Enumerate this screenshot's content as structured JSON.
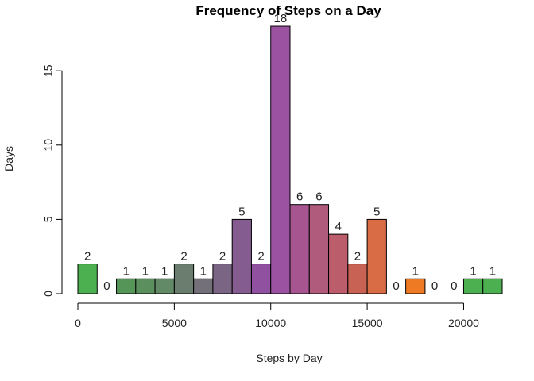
{
  "chart_data": {
    "type": "bar",
    "title": "Frequency of Steps on a Day",
    "xlabel": "Steps by Day",
    "ylabel": "Days",
    "bin_width": 1000,
    "x_range": [
      0,
      22000
    ],
    "ylim": [
      0,
      18
    ],
    "x_ticks": [
      0,
      5000,
      10000,
      15000,
      20000
    ],
    "x_tick_labels": [
      "0",
      "5000",
      "10000",
      "15000",
      "20000"
    ],
    "y_ticks": [
      0,
      5,
      10,
      15
    ],
    "y_tick_labels": [
      "0",
      "5",
      "10",
      "15"
    ],
    "bins": [
      {
        "start": 0,
        "end": 1000,
        "value": 2,
        "label": "2",
        "color": "#4caf50"
      },
      {
        "start": 1000,
        "end": 2000,
        "value": 0,
        "label": "0",
        "color": "#519a52"
      },
      {
        "start": 2000,
        "end": 3000,
        "value": 1,
        "label": "1",
        "color": "#569558"
      },
      {
        "start": 3000,
        "end": 4000,
        "value": 1,
        "label": "1",
        "color": "#5b905e"
      },
      {
        "start": 4000,
        "end": 5000,
        "value": 1,
        "label": "1",
        "color": "#628a66"
      },
      {
        "start": 5000,
        "end": 6000,
        "value": 2,
        "label": "2",
        "color": "#6b7d6f"
      },
      {
        "start": 6000,
        "end": 7000,
        "value": 1,
        "label": "1",
        "color": "#737079"
      },
      {
        "start": 7000,
        "end": 8000,
        "value": 2,
        "label": "2",
        "color": "#7a6684"
      },
      {
        "start": 8000,
        "end": 9000,
        "value": 5,
        "label": "5",
        "color": "#855c90"
      },
      {
        "start": 9000,
        "end": 10000,
        "value": 2,
        "label": "2",
        "color": "#9052a0"
      },
      {
        "start": 10000,
        "end": 11000,
        "value": 18,
        "label": "18",
        "color": "#9b52a0"
      },
      {
        "start": 11000,
        "end": 12000,
        "value": 6,
        "label": "6",
        "color": "#a65590"
      },
      {
        "start": 12000,
        "end": 13000,
        "value": 6,
        "label": "6",
        "color": "#b05a7c"
      },
      {
        "start": 13000,
        "end": 14000,
        "value": 4,
        "label": "4",
        "color": "#bb5d6a"
      },
      {
        "start": 14000,
        "end": 15000,
        "value": 2,
        "label": "2",
        "color": "#c86255"
      },
      {
        "start": 15000,
        "end": 16000,
        "value": 5,
        "label": "5",
        "color": "#d96b45"
      },
      {
        "start": 16000,
        "end": 17000,
        "value": 0,
        "label": "0",
        "color": "#e5732f"
      },
      {
        "start": 17000,
        "end": 18000,
        "value": 1,
        "label": "1",
        "color": "#ee7a23"
      },
      {
        "start": 18000,
        "end": 19000,
        "value": 0,
        "label": "0",
        "color": "#a08c3a"
      },
      {
        "start": 19000,
        "end": 20000,
        "value": 0,
        "label": "0",
        "color": "#6a9d45"
      },
      {
        "start": 20000,
        "end": 21000,
        "value": 1,
        "label": "1",
        "color": "#4caf50"
      },
      {
        "start": 21000,
        "end": 22000,
        "value": 1,
        "label": "1",
        "color": "#4caf50"
      }
    ]
  }
}
